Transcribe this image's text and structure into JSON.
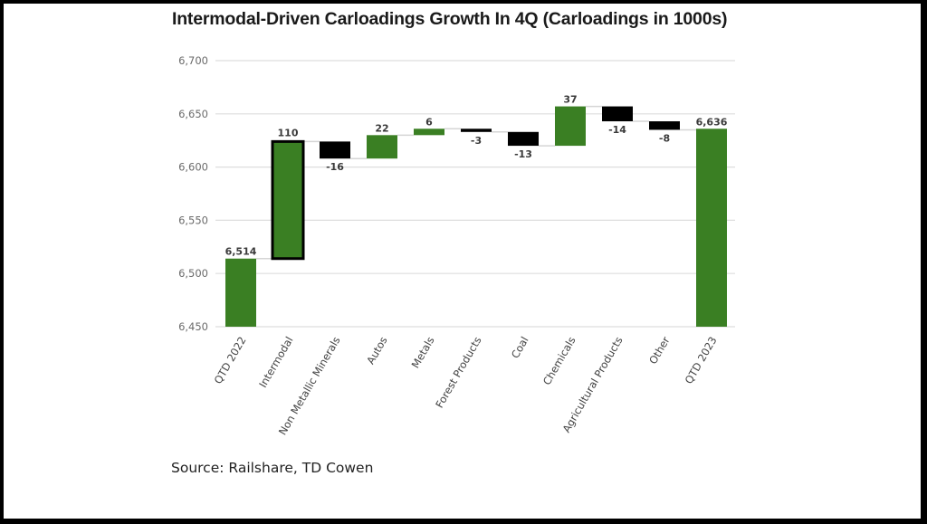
{
  "chart_data": {
    "type": "bar",
    "subtype": "waterfall",
    "title": "Intermodal-Driven Carloadings Growth In 4Q (Carloadings in 1000s)",
    "source": "Source: Railshare, TD Cowen",
    "xlabel": "",
    "ylabel": "",
    "ylim": [
      6450,
      6700
    ],
    "yticks": [
      6450,
      6500,
      6550,
      6600,
      6650,
      6700
    ],
    "ytick_labels": [
      "6,450",
      "6,500",
      "6,550",
      "6,600",
      "6,650",
      "6,700"
    ],
    "grid": true,
    "legend": "none",
    "categories": [
      "QTD 2022",
      "Intermodal",
      "Non Metallic Minerals",
      "Autos",
      "Metals",
      "Forest Products",
      "Coal",
      "Chemicals",
      "Agricultural Products",
      "Other",
      "QTD 2023"
    ],
    "values": [
      6514,
      110,
      -16,
      22,
      6,
      -3,
      -13,
      37,
      -14,
      -8,
      6636
    ],
    "kinds": [
      "total",
      "delta",
      "delta",
      "delta",
      "delta",
      "delta",
      "delta",
      "delta",
      "delta",
      "delta",
      "total"
    ],
    "data_labels": [
      "6,514",
      "110",
      "-16",
      "22",
      "6",
      "-3",
      "-13",
      "37",
      "-14",
      "-8",
      "6,636"
    ],
    "highlighted": [
      "Intermodal"
    ],
    "colors": {
      "increase": "#3a7f23",
      "decrease": "#000000",
      "total": "#3a7f23",
      "highlight_border": "#000000",
      "grid": "#dedede",
      "connector": "#d5d5d5"
    }
  }
}
